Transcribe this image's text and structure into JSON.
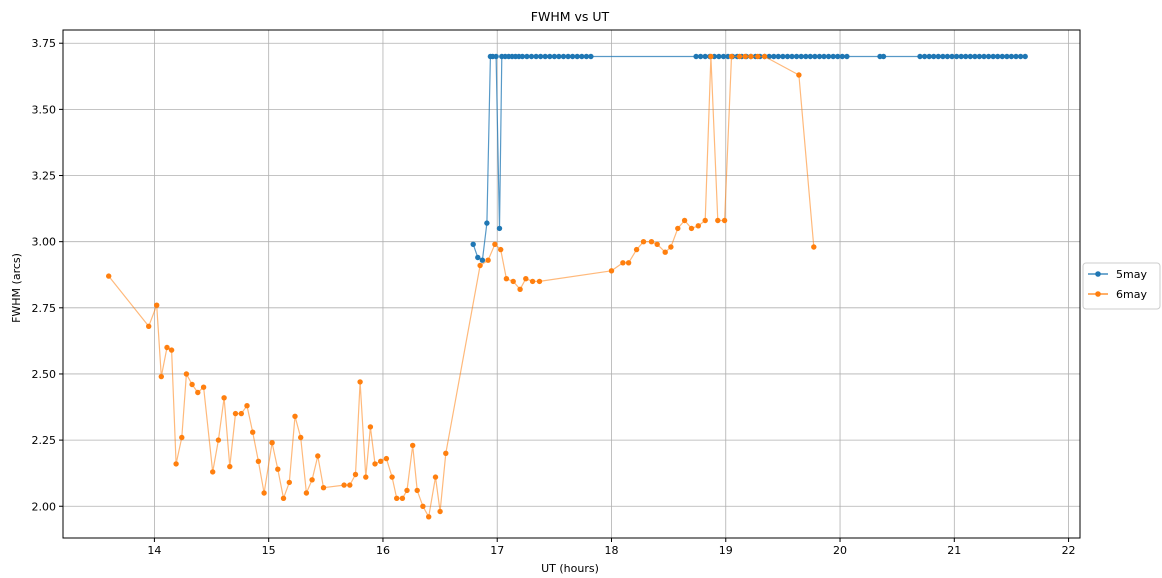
{
  "chart_data": {
    "type": "line",
    "title": "FWHM vs UT",
    "xlabel": "UT (hours)",
    "ylabel": "FWHM (arcs)",
    "xlim": [
      13.2,
      22.1
    ],
    "ylim": [
      1.88,
      3.8
    ],
    "xticks": [
      "14",
      "15",
      "16",
      "17",
      "18",
      "19",
      "20",
      "21",
      "22"
    ],
    "yticks": [
      "2.00",
      "2.25",
      "2.50",
      "2.75",
      "3.00",
      "3.25",
      "3.50",
      "3.75"
    ],
    "grid": true,
    "legend_position": "right",
    "series": [
      {
        "name": "5may",
        "color": "#1f77b4",
        "x": [
          16.79,
          16.83,
          16.87,
          16.91,
          16.94,
          16.96,
          16.99,
          17.02,
          17.04,
          17.07,
          17.1,
          17.13,
          17.16,
          17.19,
          17.22,
          17.26,
          17.3,
          17.34,
          17.38,
          17.42,
          17.46,
          17.5,
          17.54,
          17.58,
          17.62,
          17.66,
          17.7,
          17.74,
          17.78,
          17.82,
          18.74,
          18.78,
          18.82,
          18.86,
          18.9,
          18.94,
          18.98,
          19.02,
          19.06,
          19.1,
          19.14,
          19.18,
          19.22,
          19.26,
          19.3,
          19.34,
          19.38,
          19.42,
          19.46,
          19.5,
          19.54,
          19.58,
          19.62,
          19.66,
          19.7,
          19.74,
          19.78,
          19.82,
          19.86,
          19.9,
          19.94,
          19.98,
          20.02,
          20.06,
          20.35,
          20.38,
          20.7,
          20.74,
          20.78,
          20.82,
          20.86,
          20.9,
          20.94,
          20.98,
          21.02,
          21.06,
          21.1,
          21.14,
          21.18,
          21.22,
          21.26,
          21.3,
          21.34,
          21.38,
          21.42,
          21.46,
          21.5,
          21.54,
          21.58,
          21.62
        ],
        "y": [
          2.99,
          2.94,
          2.93,
          3.07,
          3.7,
          3.7,
          3.7,
          3.05,
          3.7,
          3.7,
          3.7,
          3.7,
          3.7,
          3.7,
          3.7,
          3.7,
          3.7,
          3.7,
          3.7,
          3.7,
          3.7,
          3.7,
          3.7,
          3.7,
          3.7,
          3.7,
          3.7,
          3.7,
          3.7,
          3.7,
          3.7,
          3.7,
          3.7,
          3.7,
          3.7,
          3.7,
          3.7,
          3.7,
          3.7,
          3.7,
          3.7,
          3.7,
          3.7,
          3.7,
          3.7,
          3.7,
          3.7,
          3.7,
          3.7,
          3.7,
          3.7,
          3.7,
          3.7,
          3.7,
          3.7,
          3.7,
          3.7,
          3.7,
          3.7,
          3.7,
          3.7,
          3.7,
          3.7,
          3.7,
          3.7,
          3.7,
          3.7,
          3.7,
          3.7,
          3.7,
          3.7,
          3.7,
          3.7,
          3.7,
          3.7,
          3.7,
          3.7,
          3.7,
          3.7,
          3.7,
          3.7,
          3.7,
          3.7,
          3.7,
          3.7,
          3.7,
          3.7,
          3.7,
          3.7,
          3.7
        ]
      },
      {
        "name": "6may",
        "color": "#ff7f0e",
        "x": [
          13.6,
          13.95,
          14.02,
          14.06,
          14.11,
          14.15,
          14.19,
          14.24,
          14.28,
          14.33,
          14.38,
          14.43,
          14.51,
          14.56,
          14.61,
          14.66,
          14.71,
          14.76,
          14.81,
          14.86,
          14.91,
          14.96,
          15.03,
          15.08,
          15.13,
          15.18,
          15.23,
          15.28,
          15.33,
          15.38,
          15.43,
          15.48,
          15.66,
          15.71,
          15.76,
          15.8,
          15.85,
          15.89,
          15.93,
          15.98,
          16.03,
          16.08,
          16.12,
          16.17,
          16.21,
          16.26,
          16.3,
          16.35,
          16.4,
          16.46,
          16.5,
          16.55,
          16.85,
          16.92,
          16.98,
          17.03,
          17.08,
          17.14,
          17.2,
          17.25,
          17.31,
          17.37,
          18.0,
          18.1,
          18.15,
          18.22,
          18.28,
          18.35,
          18.4,
          18.47,
          18.52,
          18.58,
          18.64,
          18.7,
          18.76,
          18.82,
          18.87,
          18.93,
          18.99,
          19.05,
          19.12,
          19.17,
          19.22,
          19.28,
          19.34,
          19.64,
          19.77
        ],
        "y": [
          2.87,
          2.68,
          2.76,
          2.49,
          2.6,
          2.59,
          2.16,
          2.26,
          2.5,
          2.46,
          2.43,
          2.45,
          2.13,
          2.25,
          2.41,
          2.15,
          2.35,
          2.35,
          2.38,
          2.28,
          2.17,
          2.05,
          2.24,
          2.14,
          2.03,
          2.09,
          2.34,
          2.26,
          2.05,
          2.1,
          2.19,
          2.07,
          2.08,
          2.08,
          2.12,
          2.47,
          2.11,
          2.3,
          2.16,
          2.17,
          2.18,
          2.11,
          2.03,
          2.03,
          2.06,
          2.23,
          2.06,
          2.0,
          1.96,
          2.11,
          1.98,
          2.2,
          2.91,
          2.93,
          2.99,
          2.97,
          2.86,
          2.85,
          2.82,
          2.86,
          2.85,
          2.85,
          2.89,
          2.92,
          2.92,
          2.97,
          3.0,
          3.0,
          2.99,
          2.96,
          2.98,
          3.05,
          3.08,
          3.05,
          3.06,
          3.08,
          3.7,
          3.08,
          3.08,
          3.7,
          3.7,
          3.7,
          3.7,
          3.7,
          3.7,
          3.63,
          2.98
        ]
      }
    ]
  }
}
